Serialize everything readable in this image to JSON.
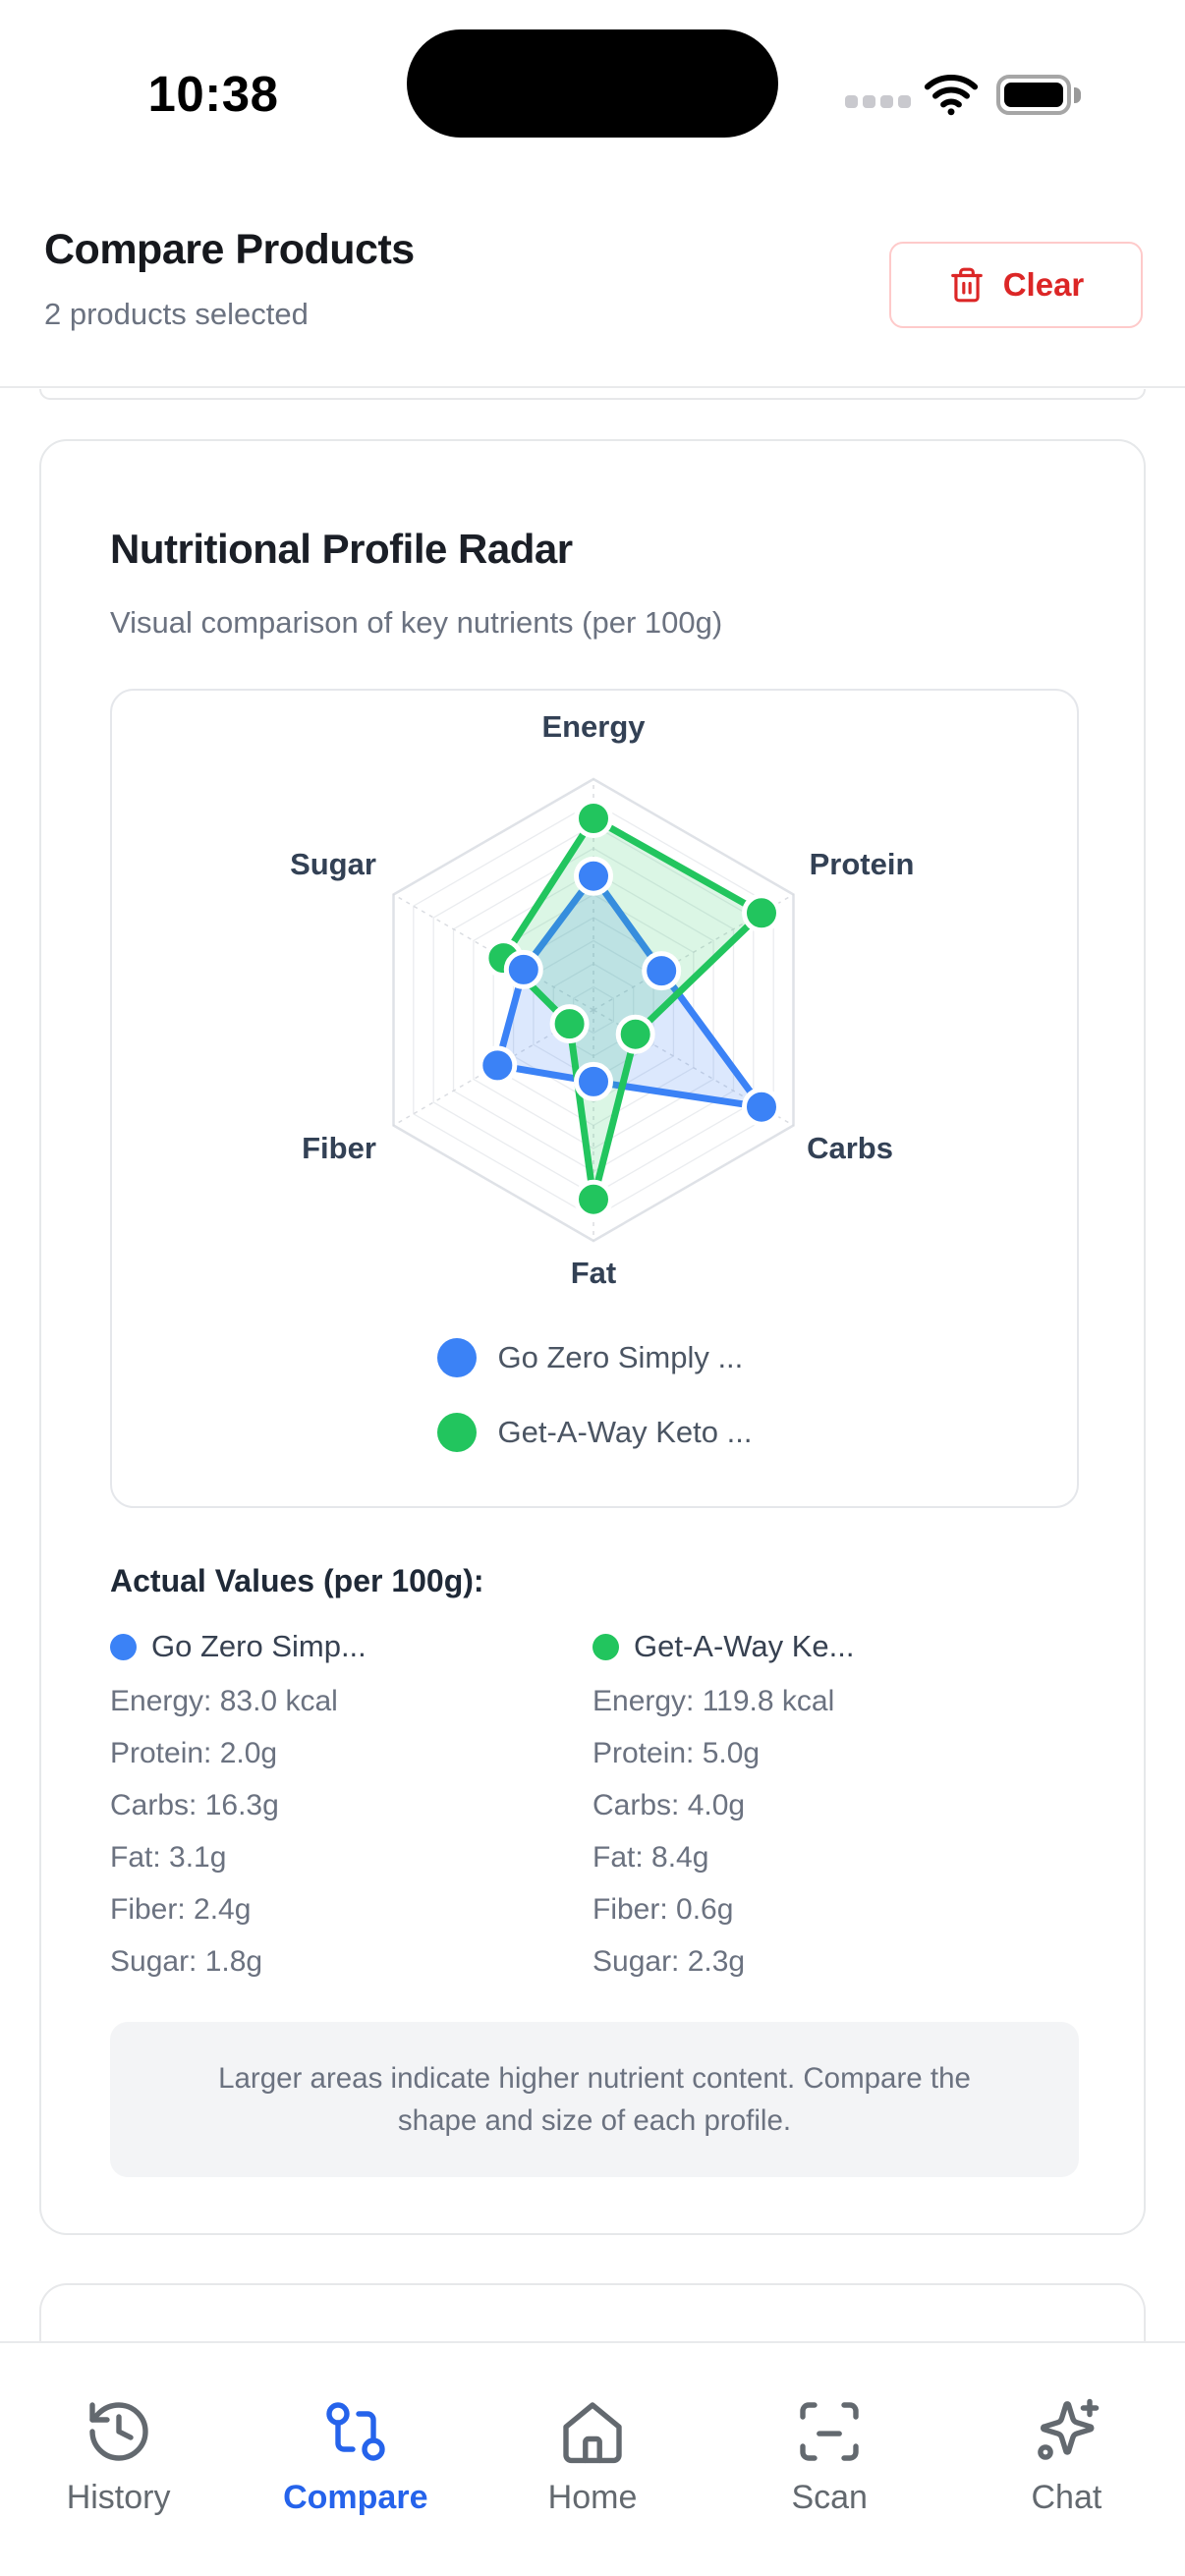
{
  "status_bar": {
    "time": "10:38"
  },
  "header": {
    "title": "Compare Products",
    "subtitle": "2 products selected",
    "clear_button": "Clear"
  },
  "radar_card": {
    "title": "Nutritional Profile Radar",
    "subtitle": "Visual comparison of key nutrients (per 100g)",
    "values_title": "Actual Values (per 100g):",
    "note": "Larger areas indicate higher nutrient content. Compare the shape and size of each profile."
  },
  "chart_data": {
    "type": "radar",
    "axes": [
      "Energy",
      "Protein",
      "Carbs",
      "Fat",
      "Fiber",
      "Sugar"
    ],
    "grid_levels": 10,
    "axis_label_color": "#334155",
    "grid_color": "#e5e7eb",
    "series": [
      {
        "name": "Go Zero Simply ...",
        "color": "#3b82f6",
        "fill_color": "rgba(59,130,246,0.18)",
        "values_normalized": [
          0.58,
          0.34,
          0.84,
          0.31,
          0.48,
          0.35
        ],
        "actual_values": {
          "Energy": "83.0 kcal",
          "Protein": "2.0g",
          "Carbs": "16.3g",
          "Fat": "3.1g",
          "Fiber": "2.4g",
          "Sugar": "1.8g"
        }
      },
      {
        "name": "Get-A-Way Keto ...",
        "color": "#22c55e",
        "fill_color": "rgba(34,197,94,0.16)",
        "values_normalized": [
          0.83,
          0.84,
          0.21,
          0.82,
          0.12,
          0.45
        ],
        "actual_values": {
          "Energy": "119.8 kcal",
          "Protein": "5.0g",
          "Carbs": "4.0g",
          "Fat": "8.4g",
          "Fiber": "0.6g",
          "Sugar": "2.3g"
        }
      }
    ]
  },
  "values_columns": [
    {
      "name": "Go Zero Simp...",
      "dot_color": "#3b82f6",
      "rows": [
        "Energy: 83.0 kcal",
        "Protein: 2.0g",
        "Carbs: 16.3g",
        "Fat: 3.1g",
        "Fiber: 2.4g",
        "Sugar: 1.8g"
      ]
    },
    {
      "name": "Get-A-Way Ke...",
      "dot_color": "#22c55e",
      "rows": [
        "Energy: 119.8 kcal",
        "Protein: 5.0g",
        "Carbs: 4.0g",
        "Fat: 8.4g",
        "Fiber: 0.6g",
        "Sugar: 2.3g"
      ]
    }
  ],
  "nav": {
    "active_color": "#2563eb",
    "inactive_color": "#6b7280",
    "items": [
      {
        "label": "History",
        "icon": "history-icon",
        "active": false
      },
      {
        "label": "Compare",
        "icon": "compare-icon",
        "active": true
      },
      {
        "label": "Home",
        "icon": "home-icon",
        "active": false
      },
      {
        "label": "Scan",
        "icon": "scan-icon",
        "active": false
      },
      {
        "label": "Chat",
        "icon": "sparkles-icon",
        "active": false
      }
    ]
  },
  "colors": {
    "accent_red": "#dc2626",
    "border": "#e5e7eb",
    "text_dark": "#111827",
    "text_gray": "#6b7280"
  }
}
